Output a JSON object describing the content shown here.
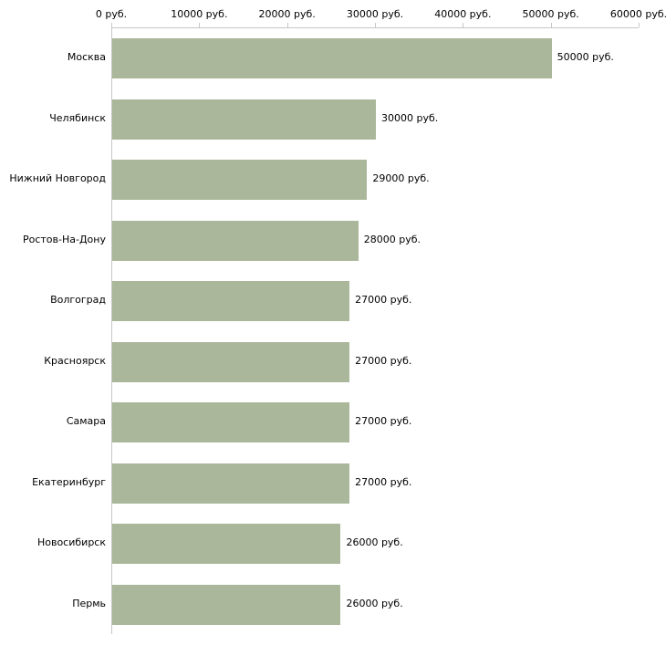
{
  "chart_data": {
    "type": "bar",
    "orientation": "horizontal",
    "title": "",
    "xlabel": "",
    "ylabel": "",
    "categories": [
      "Москва",
      "Челябинск",
      "Нижний Новгород",
      "Ростов-На-Дону",
      "Волгоград",
      "Красноярск",
      "Самара",
      "Екатеринбург",
      "Новосибирск",
      "Пермь"
    ],
    "values": [
      50000,
      30000,
      29000,
      28000,
      27000,
      27000,
      27000,
      27000,
      26000,
      26000
    ],
    "value_labels": [
      "50000 руб.",
      "30000 руб.",
      "29000 руб.",
      "28000 руб.",
      "27000 руб.",
      "27000 руб.",
      "27000 руб.",
      "27000 руб.",
      "26000 руб.",
      "26000 руб."
    ],
    "x_ticks": [
      {
        "value": 0,
        "label": "0 руб."
      },
      {
        "value": 10000,
        "label": "10000 руб."
      },
      {
        "value": 20000,
        "label": "20000 руб."
      },
      {
        "value": 30000,
        "label": "30000 руб."
      },
      {
        "value": 40000,
        "label": "40000 руб."
      },
      {
        "value": 50000,
        "label": "50000 руб."
      },
      {
        "value": 60000,
        "label": "60000 руб."
      }
    ],
    "xlim": [
      0,
      60000
    ],
    "grid": false,
    "legend": "none",
    "colors": {
      "bar": "#abb79a",
      "axis": "#c6c6c6",
      "text": "#000000",
      "background": "#ffffff"
    }
  }
}
